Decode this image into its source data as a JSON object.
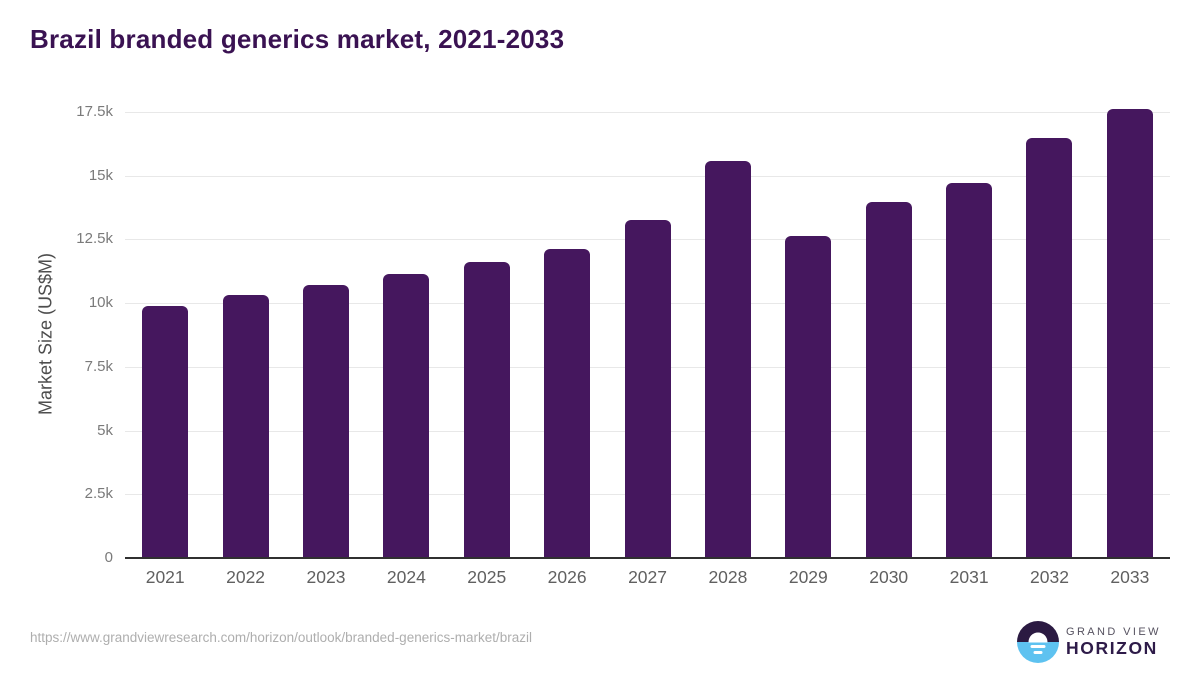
{
  "header": {
    "title": "Brazil branded generics market, 2021-2033"
  },
  "chart_data": {
    "type": "bar",
    "title": "Brazil branded generics market, 2021-2033",
    "categories": [
      "2021",
      "2022",
      "2023",
      "2024",
      "2025",
      "2026",
      "2027",
      "2028",
      "2029",
      "2030",
      "2031",
      "2032",
      "2033"
    ],
    "values": [
      9900,
      10330,
      10730,
      11140,
      11600,
      12110,
      13270,
      15560,
      12640,
      13960,
      14710,
      16500,
      17620
    ],
    "xlabel": "",
    "ylabel": "Market Size (US$M)",
    "ylim": [
      0,
      17500
    ],
    "yticks": [
      0,
      2500,
      5000,
      7500,
      10000,
      12500,
      15000,
      17500
    ],
    "ytick_labels": [
      "0",
      "2.5k",
      "5k",
      "7.5k",
      "10k",
      "12.5k",
      "15k",
      "17.5k"
    ],
    "grid": true,
    "legend": false,
    "bar_color": "#45175e"
  },
  "footer": {
    "url": "https://www.grandviewresearch.com/horizon/outlook/branded-generics-market/brazil",
    "logo": {
      "line1": "GRAND VIEW",
      "line2": "HORIZON"
    }
  },
  "colors": {
    "title_text": "#3a1252",
    "bar": "#45175e",
    "gridline": "#e8e8e8",
    "axis_line": "#303030",
    "y_tick": "#7a7a7a",
    "x_tick": "#606060",
    "y_label": "#4d4d4d",
    "url_text": "#aeaeae",
    "logo_dark": "#2b1a42",
    "logo_blue": "#5ec2f0",
    "logo_grand_view": "#55515f",
    "logo_horizon": "#2e1b49"
  }
}
